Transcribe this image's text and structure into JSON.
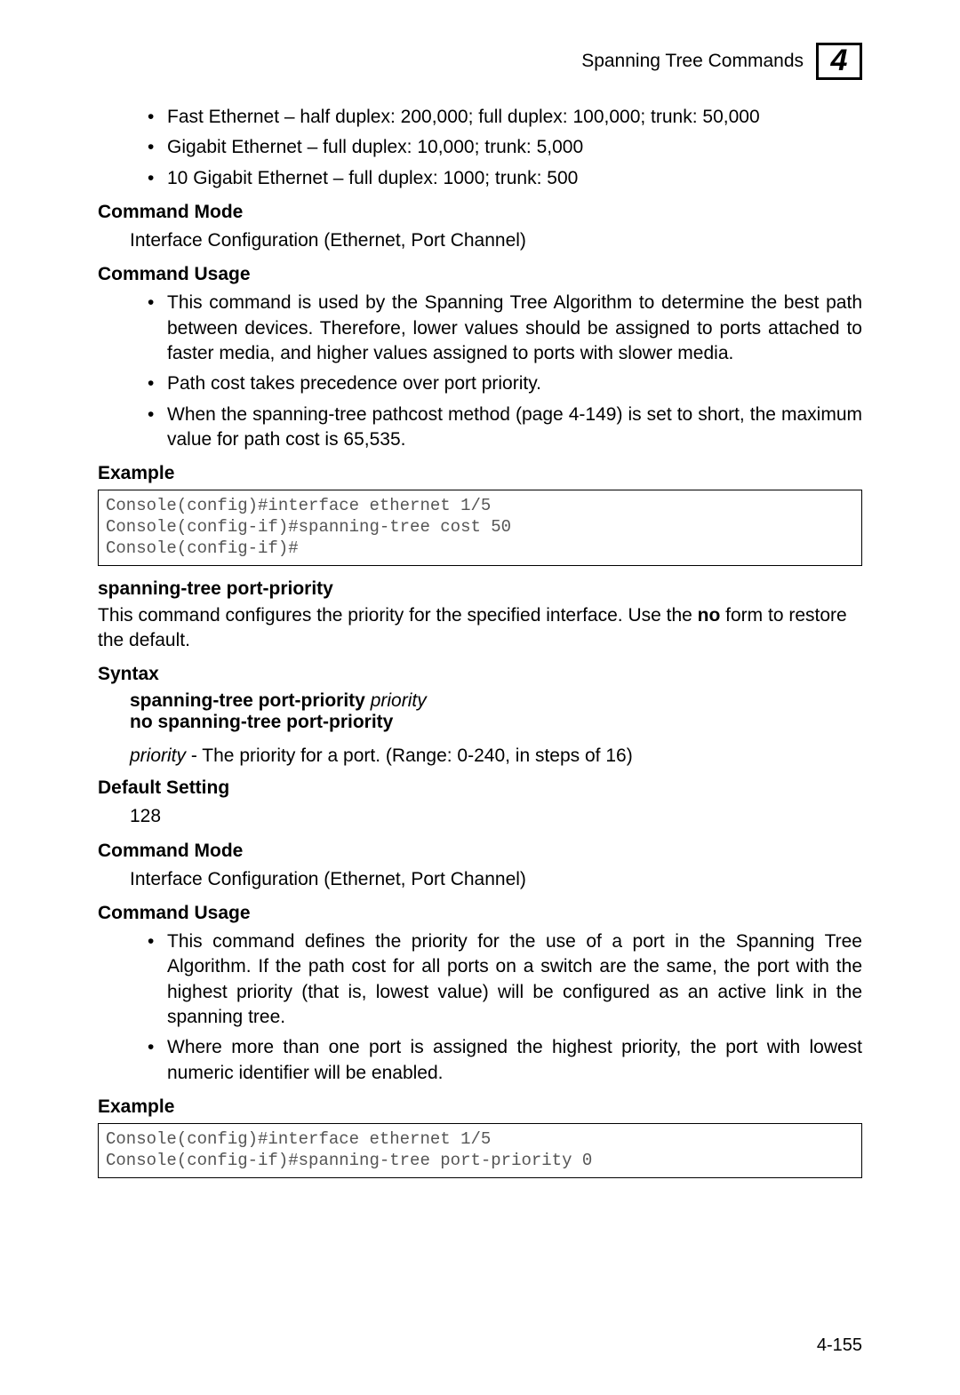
{
  "header": {
    "title": "Spanning Tree Commands",
    "chapter": "4"
  },
  "top_bullets": [
    "Fast Ethernet – half duplex: 200,000; full duplex: 100,000; trunk: 50,000",
    "Gigabit Ethernet – full duplex: 10,000; trunk: 5,000",
    "10 Gigabit Ethernet – full duplex: 1000; trunk: 500"
  ],
  "sec1": {
    "cmd_mode_h": "Command Mode",
    "cmd_mode_t": "Interface Configuration (Ethernet, Port Channel)",
    "cmd_usage_h": "Command Usage",
    "usage_bullets": [
      "This command is used by the Spanning Tree Algorithm to determine the best path between devices. Therefore, lower values should be assigned to ports attached to faster media, and higher values assigned to ports with slower media.",
      "Path cost takes precedence over port priority.",
      "When the spanning-tree pathcost method (page 4-149) is set to short, the maximum value for path cost is 65,535."
    ],
    "example_h": "Example",
    "example_code": "Console(config)#interface ethernet 1/5\nConsole(config-if)#spanning-tree cost 50\nConsole(config-if)#"
  },
  "sec2": {
    "title": "spanning-tree port-priority",
    "desc_pre": "This command configures the priority for the specified interface. Use the ",
    "desc_bold": "no",
    "desc_post": " form to restore the default.",
    "syntax_h": "Syntax",
    "syntax_cmd1_b": "spanning-tree port-priority",
    "syntax_cmd1_i": "priority",
    "syntax_cmd2": "no spanning-tree port-priority",
    "param_i": "priority",
    "param_rest": " - The priority for a port. (Range: 0-240, in steps of 16)",
    "default_h": "Default Setting",
    "default_v": "128",
    "cmd_mode_h": "Command Mode",
    "cmd_mode_t": "Interface Configuration (Ethernet, Port Channel)",
    "cmd_usage_h": "Command Usage",
    "usage_bullets": [
      "This command defines the priority for the use of a port in the Spanning Tree Algorithm. If the path cost for all ports on a switch are the same, the port with the highest priority (that is, lowest value) will be configured as an active link in the spanning tree.",
      "Where more than one port is assigned the highest priority, the port with lowest numeric identifier will be enabled."
    ],
    "example_h": "Example",
    "example_code": "Console(config)#interface ethernet 1/5\nConsole(config-if)#spanning-tree port-priority 0"
  },
  "page_number": "4-155"
}
